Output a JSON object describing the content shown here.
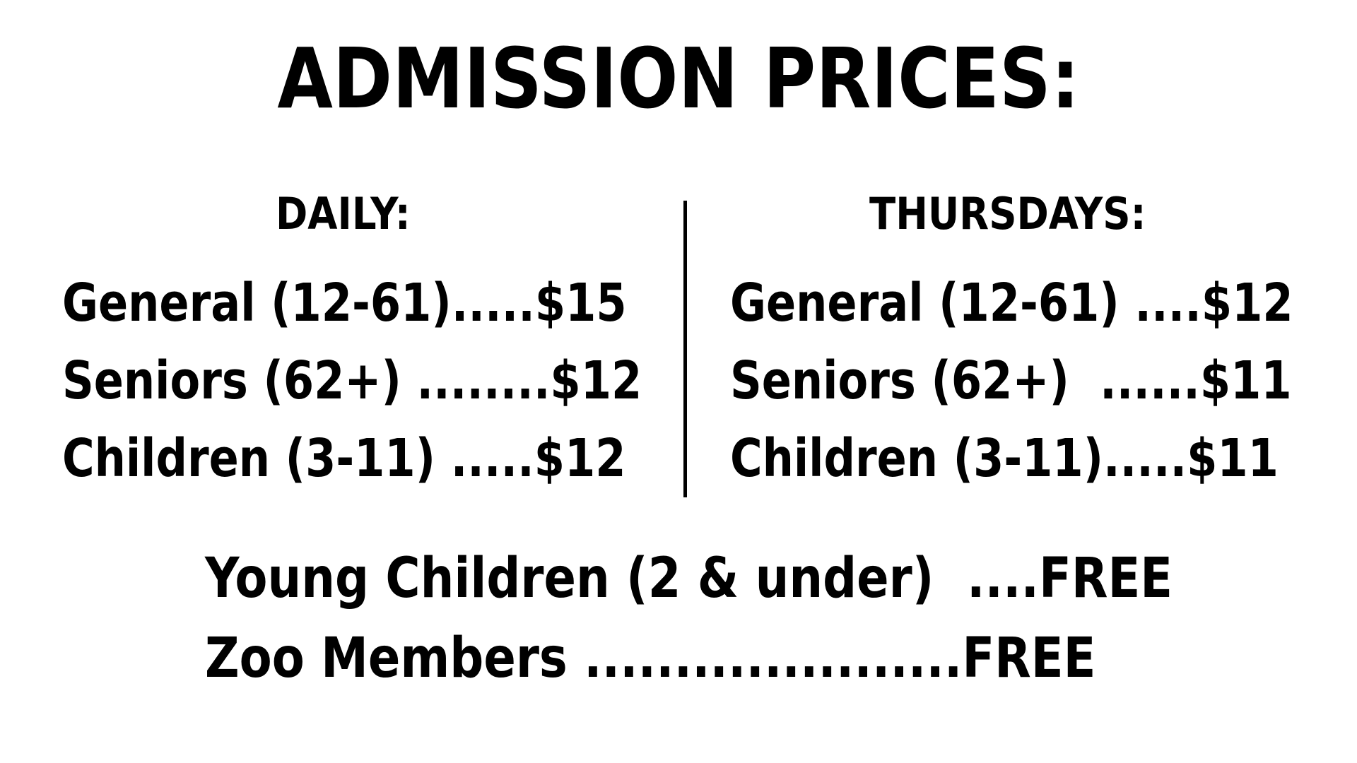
{
  "title": "ADMISSION PRICES:",
  "daily": {
    "heading": "DAILY:",
    "rows": [
      "General (12-61).....$15",
      "Seniors (62+) ........$12",
      "Children (3-11) .....$12"
    ]
  },
  "thursdays": {
    "heading": "THURSDAYS:",
    "rows": [
      "General (12-61) ....$12",
      "Seniors (62+)  ......$11",
      "Children (3-11).....$11"
    ]
  },
  "free": [
    "Young Children (2 & under)  ....FREE",
    "Zoo Members .....................FREE"
  ]
}
